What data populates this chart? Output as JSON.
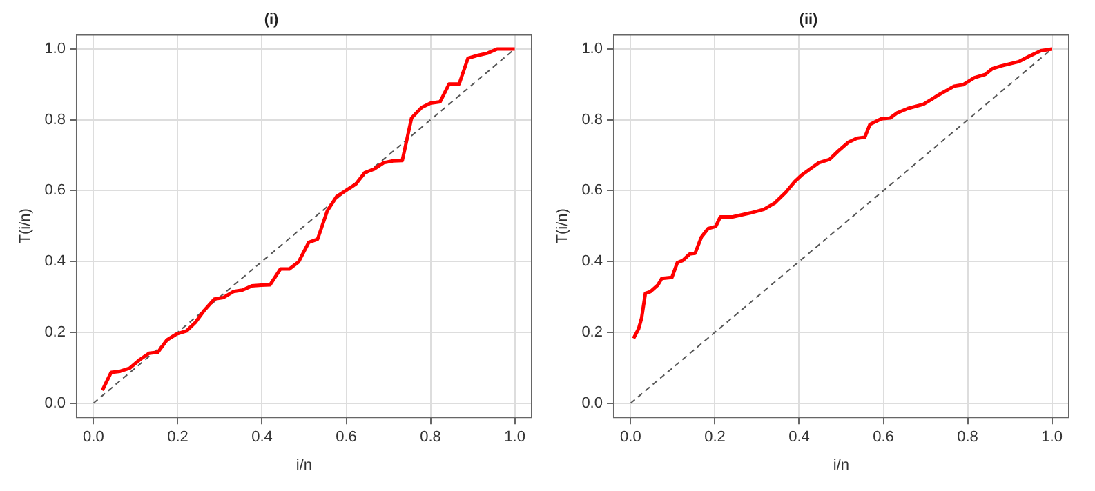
{
  "chart_data": [
    {
      "type": "line",
      "title": "(i)",
      "xlabel": "i/n",
      "ylabel": "T(i/n)",
      "xlim": [
        -0.04,
        1.04
      ],
      "ylim": [
        -0.04,
        1.04
      ],
      "xticks": [
        {
          "value": 0,
          "label": "0.0"
        },
        {
          "value": 0.2,
          "label": "0.2"
        },
        {
          "value": 0.4,
          "label": "0.4"
        },
        {
          "value": 0.6,
          "label": "0.6"
        },
        {
          "value": 0.8,
          "label": "0.8"
        },
        {
          "value": 1,
          "label": "1.0"
        }
      ],
      "yticks": [
        {
          "value": 0,
          "label": "0.0"
        },
        {
          "value": 0.2,
          "label": "0.2"
        },
        {
          "value": 0.4,
          "label": "0.4"
        },
        {
          "value": 0.6,
          "label": "0.6"
        },
        {
          "value": 0.8,
          "label": "0.8"
        },
        {
          "value": 1,
          "label": "1.0"
        }
      ],
      "grid": true,
      "marker": "none",
      "series": [
        {
          "color": "#ff0000",
          "line_style": "solid",
          "x": [
            0.021,
            0.042,
            0.063,
            0.086,
            0.11,
            0.132,
            0.153,
            0.174,
            0.197,
            0.221,
            0.242,
            0.263,
            0.287,
            0.308,
            0.332,
            0.353,
            0.376,
            0.398,
            0.419,
            0.444,
            0.465,
            0.487,
            0.511,
            0.532,
            0.555,
            0.577,
            0.6,
            0.623,
            0.644,
            0.666,
            0.689,
            0.711,
            0.733,
            0.755,
            0.779,
            0.8,
            0.823,
            0.844,
            0.868,
            0.889,
            0.913,
            0.935,
            0.958,
            1.0
          ],
          "values": [
            0.036,
            0.087,
            0.09,
            0.099,
            0.123,
            0.141,
            0.144,
            0.178,
            0.195,
            0.204,
            0.228,
            0.262,
            0.294,
            0.298,
            0.315,
            0.319,
            0.331,
            0.333,
            0.334,
            0.379,
            0.379,
            0.399,
            0.454,
            0.463,
            0.543,
            0.583,
            0.601,
            0.619,
            0.651,
            0.661,
            0.679,
            0.684,
            0.685,
            0.805,
            0.835,
            0.847,
            0.851,
            0.901,
            0.901,
            0.974,
            0.982,
            0.988,
            1.0,
            1.0
          ]
        },
        {
          "type": "line",
          "color": "#555555",
          "line_style": "dashed",
          "x": [
            0,
            1
          ],
          "values": [
            0,
            1
          ]
        }
      ]
    },
    {
      "type": "line",
      "title": "(ii)",
      "xlabel": "i/n",
      "ylabel": "T(i/n)",
      "xlim": [
        -0.04,
        1.04
      ],
      "ylim": [
        -0.04,
        1.04
      ],
      "xticks": [
        {
          "value": 0,
          "label": "0.0"
        },
        {
          "value": 0.2,
          "label": "0.2"
        },
        {
          "value": 0.4,
          "label": "0.4"
        },
        {
          "value": 0.6,
          "label": "0.6"
        },
        {
          "value": 0.8,
          "label": "0.8"
        },
        {
          "value": 1,
          "label": "1.0"
        }
      ],
      "yticks": [
        {
          "value": 0,
          "label": "0.0"
        },
        {
          "value": 0.2,
          "label": "0.2"
        },
        {
          "value": 0.4,
          "label": "0.4"
        },
        {
          "value": 0.6,
          "label": "0.6"
        },
        {
          "value": 0.8,
          "label": "0.8"
        },
        {
          "value": 1,
          "label": "1.0"
        }
      ],
      "grid": true,
      "marker": "none",
      "series": [
        {
          "color": "#ff0000",
          "line_style": "solid",
          "x": [
            0.007,
            0.019,
            0.026,
            0.035,
            0.047,
            0.065,
            0.074,
            0.098,
            0.111,
            0.124,
            0.14,
            0.153,
            0.168,
            0.184,
            0.202,
            0.213,
            0.242,
            0.284,
            0.316,
            0.342,
            0.368,
            0.389,
            0.405,
            0.426,
            0.447,
            0.472,
            0.493,
            0.516,
            0.537,
            0.556,
            0.568,
            0.595,
            0.616,
            0.632,
            0.658,
            0.695,
            0.716,
            0.732,
            0.768,
            0.789,
            0.816,
            0.842,
            0.858,
            0.879,
            0.921,
            0.947,
            0.974,
            1.0
          ],
          "values": [
            0.183,
            0.21,
            0.24,
            0.31,
            0.315,
            0.334,
            0.352,
            0.355,
            0.397,
            0.403,
            0.421,
            0.423,
            0.469,
            0.493,
            0.499,
            0.526,
            0.526,
            0.537,
            0.547,
            0.565,
            0.595,
            0.625,
            0.643,
            0.661,
            0.679,
            0.688,
            0.712,
            0.736,
            0.748,
            0.751,
            0.787,
            0.803,
            0.805,
            0.819,
            0.832,
            0.844,
            0.859,
            0.871,
            0.895,
            0.899,
            0.919,
            0.928,
            0.944,
            0.952,
            0.964,
            0.98,
            0.995,
            1.0
          ]
        },
        {
          "type": "line",
          "color": "#555555",
          "line_style": "dashed",
          "x": [
            0,
            1
          ],
          "values": [
            0,
            1
          ]
        }
      ]
    }
  ]
}
